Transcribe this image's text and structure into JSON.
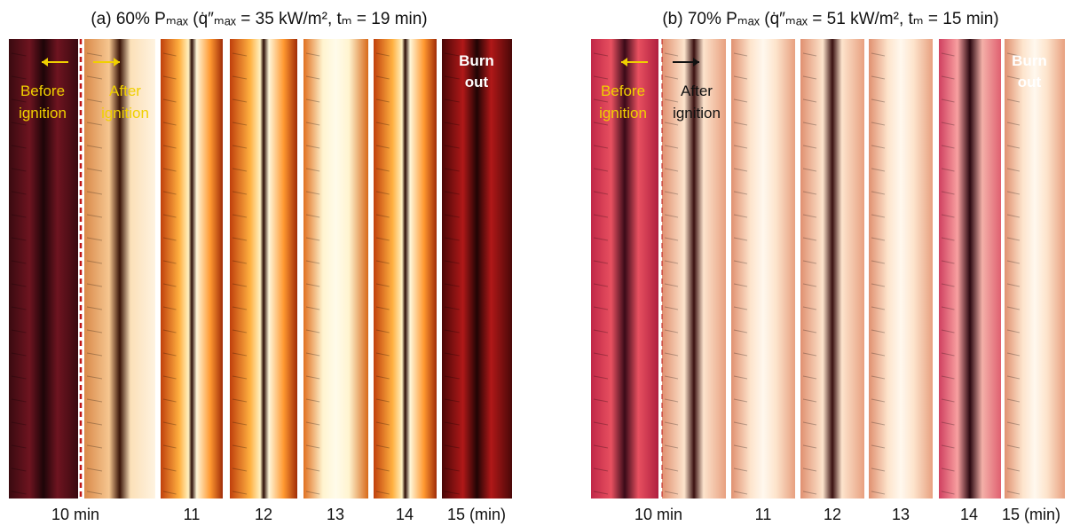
{
  "panels": [
    {
      "title": "(a) 60% Pₘₐₓ (q̇″ₘₐₓ = 35 kW/m², tₘ = 19 min)",
      "before_ignition": [
        "Before",
        "ignition"
      ],
      "after_ignition": [
        "After",
        "ignition"
      ],
      "burn_out": [
        "Burn",
        "out"
      ],
      "times": [
        "10 min",
        "11",
        "12",
        "13",
        "14",
        "15 (min)"
      ]
    },
    {
      "title": "(b) 70% Pₘₐₓ (q̇″ₘₐₓ = 51 kW/m², tₘ = 15 min)",
      "before_ignition": [
        "Before",
        "ignition"
      ],
      "after_ignition": [
        "After",
        "ignition"
      ],
      "burn_out": [
        "Burn",
        "out"
      ],
      "times": [
        "10 min",
        "11",
        "12",
        "13",
        "14",
        "15 (min)"
      ]
    }
  ]
}
